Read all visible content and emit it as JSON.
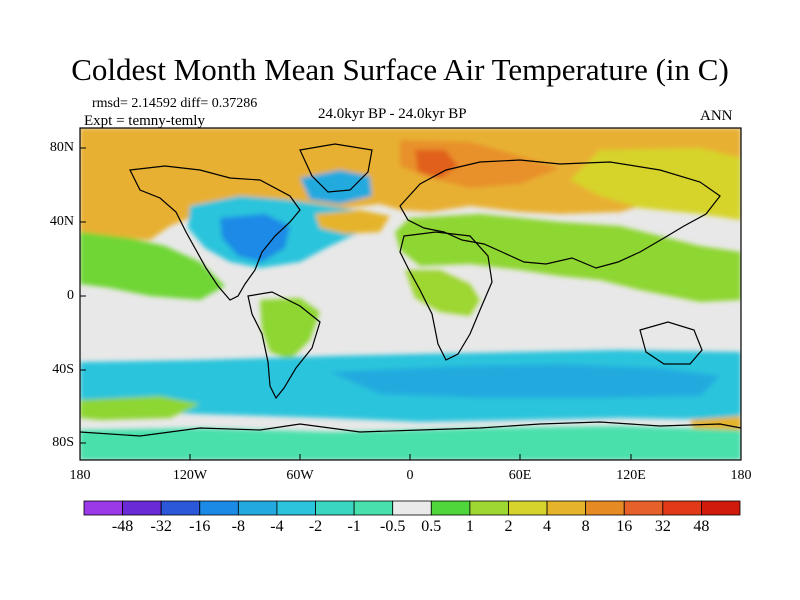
{
  "title": "Coldest Month Mean Surface Air Temperature (in C)",
  "stats": {
    "rmsd_line": "rmsd= 2.14592 diff= 0.37286",
    "expt_line": "Expt = temny-temly"
  },
  "period": "24.0kyr BP - 24.0kyr BP",
  "season": "ANN",
  "lat_ticks": [
    "80N",
    "40N",
    "0",
    "40S",
    "80S"
  ],
  "lon_ticks": [
    "180",
    "120W",
    "60W",
    "0",
    "60E",
    "120E",
    "180"
  ],
  "colorbar": {
    "labels": [
      "-48",
      "-32",
      "-16",
      "-8",
      "-4",
      "-2",
      "-1",
      "-0.5",
      "0.5",
      "1",
      "2",
      "4",
      "8",
      "16",
      "32",
      "48"
    ],
    "colors": [
      "#9b38e8",
      "#6a2ad6",
      "#2a58d8",
      "#1a8ae6",
      "#22aadf",
      "#2cc4dc",
      "#3ad6c2",
      "#48e0ac",
      "#eaeaea",
      "#4fd63a",
      "#9ed632",
      "#d6d42c",
      "#e6b42a",
      "#e68a24",
      "#e6602a",
      "#e23a18",
      "#d21a0c"
    ]
  }
}
